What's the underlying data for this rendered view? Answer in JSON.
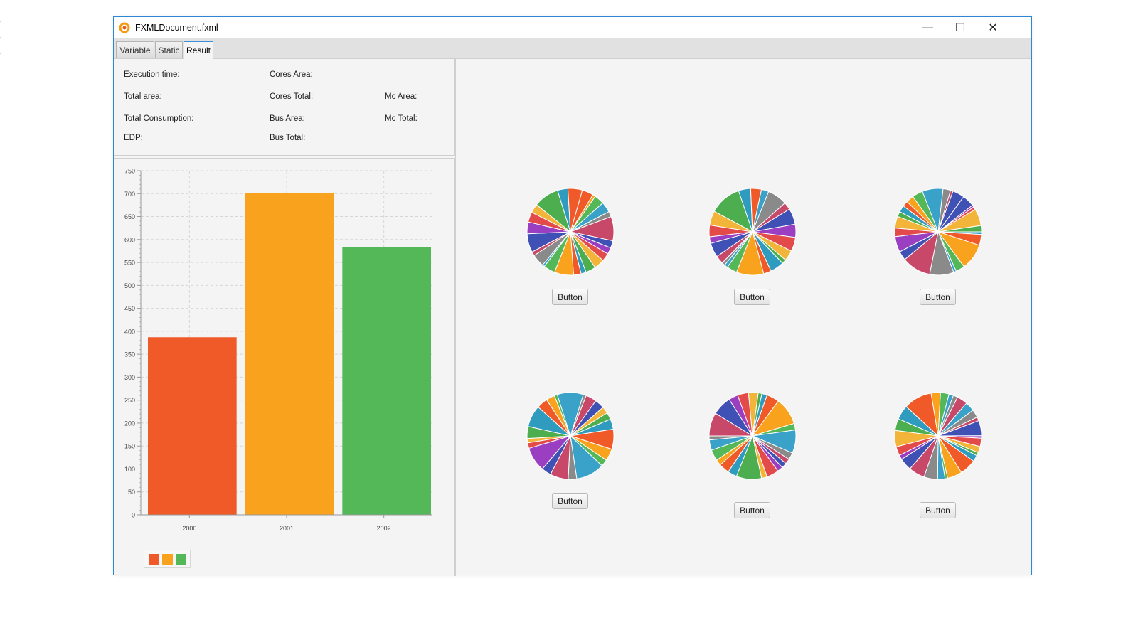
{
  "window": {
    "title": "FXMLDocument.fxml",
    "controls": {
      "minimize": "—",
      "maximize": "☐",
      "close": "✕"
    }
  },
  "tabs": [
    {
      "label": "Variable",
      "selected": false
    },
    {
      "label": "Static",
      "selected": false
    },
    {
      "label": "Result",
      "selected": true
    }
  ],
  "info": {
    "execution_time": "Execution time:",
    "total_area": "Total area:",
    "total_consumption": "Total Consumption:",
    "edp": "EDP:",
    "cores_area": "Cores Area:",
    "cores_total": "Cores Total:",
    "bus_area": "Bus Area:",
    "bus_total": "Bus Total:",
    "mc_area": "Mc Area:",
    "mc_total": "Mc Total:"
  },
  "chart_data": {
    "type": "bar",
    "categories": [
      "2000",
      "2001",
      "2002"
    ],
    "values": [
      387,
      702,
      584
    ],
    "colors": [
      "#f05a28",
      "#f9a21d",
      "#55b858"
    ],
    "ylim": [
      0,
      750
    ],
    "yticks": [
      "0",
      "50",
      "100",
      "150",
      "200",
      "250",
      "300",
      "350",
      "400",
      "450",
      "500",
      "550",
      "600",
      "650",
      "700",
      "750"
    ],
    "grid": true,
    "legend": "bottom"
  },
  "pies": [
    {
      "button": "Button"
    },
    {
      "button": "Button"
    },
    {
      "button": "Button"
    },
    {
      "button": "Button"
    },
    {
      "button": "Button"
    },
    {
      "button": "Button"
    }
  ],
  "pie_palette": [
    "#f05a28",
    "#f9a21d",
    "#55b858",
    "#3aa2c8",
    "#8a8a8a",
    "#c84869",
    "#3f51b5",
    "#9b3fc2",
    "#e34a4a",
    "#f3b43a",
    "#4cae4f",
    "#2f9bbf"
  ]
}
